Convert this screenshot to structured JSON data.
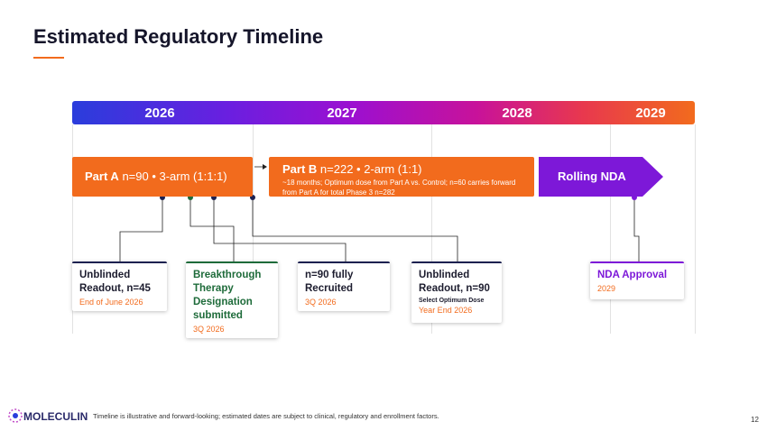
{
  "header": {
    "title": "Estimated Regulatory Timeline"
  },
  "timeline": {
    "years": [
      "2026",
      "2027",
      "2028",
      "2029"
    ]
  },
  "phases": [
    {
      "label": "Part A",
      "detail": "n=90 • 3-arm (1:1:1)"
    },
    {
      "label": "Part B",
      "detail": "n=222 • 2-arm (1:1)",
      "note": "~18 months; Optimum dose from Part A vs. Control; n=60 carries forward from Part A for total Phase 3 n=282"
    },
    {
      "label": "Rolling NDA"
    }
  ],
  "milestones": [
    {
      "title": "Unblinded Readout, n=45",
      "date": "End of June 2026"
    },
    {
      "title": "Breakthrough Therapy Designation submitted",
      "date": "3Q 2026"
    },
    {
      "title": "n=90 fully Recruited",
      "date": "3Q 2026"
    },
    {
      "title": "Unblinded Readout, n=90",
      "subtitle": "Select Optimum Dose",
      "date": "Year End 2026"
    },
    {
      "title": "NDA Approval",
      "date": "2029"
    }
  ],
  "footer": {
    "logo": "MOLECULIN",
    "disclaimer": "Timeline is illustrative and forward-looking; estimated dates are subject to clinical, regulatory and enrollment factors.",
    "page": "12"
  }
}
